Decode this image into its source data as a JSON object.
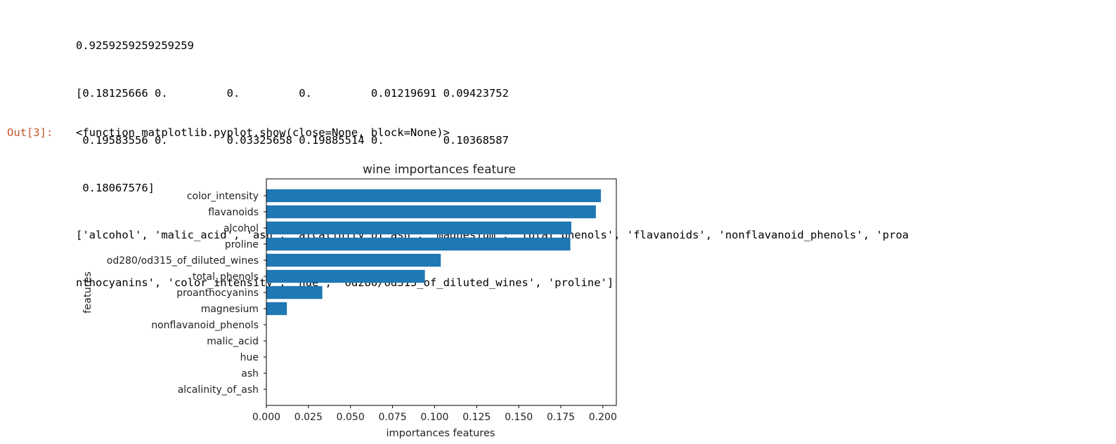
{
  "stdout": {
    "lines": [
      "0.9259259259259259",
      "[0.18125666 0.         0.         0.         0.01219691 0.09423752",
      " 0.19583556 0.         0.03325658 0.19885514 0.         0.10368587",
      " 0.18067576]",
      "['alcohol', 'malic_acid', 'ash', 'alcalinity_of_ash', 'magnesium', 'total_phenols', 'flavanoids', 'nonflavanoid_phenols', 'proa",
      "nthocyanins', 'color_intensity', 'hue', 'od280/od315_of_diluted_wines', 'proline']"
    ]
  },
  "output": {
    "prompt": "Out[3]:",
    "text": "<function matplotlib.pyplot.show(close=None, block=None)>"
  },
  "colors": {
    "bar": "#1f77b4",
    "prompt": "#c5562c"
  },
  "chart_data": {
    "type": "bar",
    "orientation": "horizontal",
    "title": "wine importances feature",
    "xlabel": "importances features",
    "ylabel": "features",
    "categories": [
      "color_intensity",
      "flavanoids",
      "alcohol",
      "proline",
      "od280/od315_of_diluted_wines",
      "total_phenols",
      "proanthocyanins",
      "magnesium",
      "nonflavanoid_phenols",
      "malic_acid",
      "hue",
      "ash",
      "alcalinity_of_ash"
    ],
    "values": [
      0.19885514,
      0.19583556,
      0.18125666,
      0.18067576,
      0.10368587,
      0.09423752,
      0.03325658,
      0.01219691,
      0,
      0,
      0,
      0,
      0
    ],
    "xlim": [
      0,
      0.208
    ],
    "xticks": [
      "0.000",
      "0.025",
      "0.050",
      "0.075",
      "0.100",
      "0.125",
      "0.150",
      "0.175",
      "0.200"
    ],
    "xtick_values": [
      0,
      0.025,
      0.05,
      0.075,
      0.1,
      0.125,
      0.15,
      0.175,
      0.2
    ],
    "grid": false,
    "legend": false
  }
}
